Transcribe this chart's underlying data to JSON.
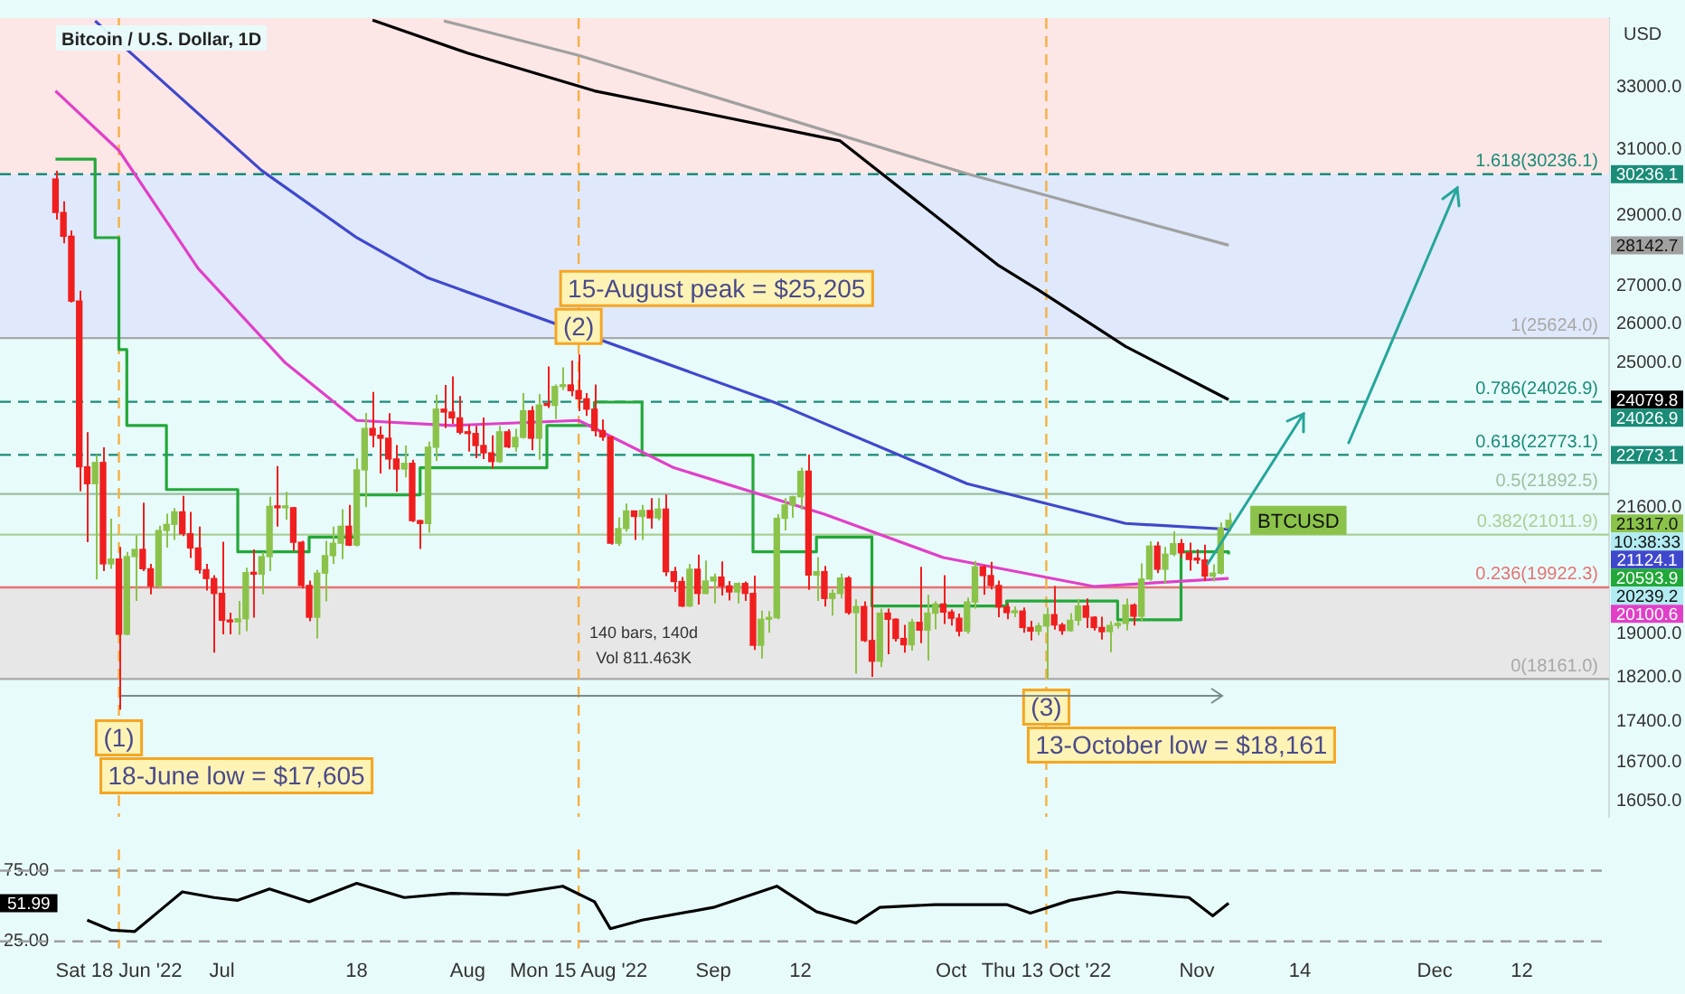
{
  "chart_data": [
    {
      "type": "candlestick",
      "title": "Bitcoin / U.S. Dollar, 1D",
      "ylabel": "USD",
      "log": "y",
      "tick_labels": "y",
      "xlim": [
        "2022-06-03",
        "2022-12-23"
      ],
      "ylim": [
        15800,
        35400
      ],
      "yticks": [
        {
          "value": 33000,
          "label": "33000.0"
        },
        {
          "value": 31000,
          "label": "31000.0"
        },
        {
          "value": 29000,
          "label": "29000.0"
        },
        {
          "value": 27000,
          "label": "27000.0"
        },
        {
          "value": 26000,
          "label": "26000.0"
        },
        {
          "value": 25000,
          "label": "25000.0"
        },
        {
          "value": 21600,
          "label": "21600.0"
        },
        {
          "value": 19000,
          "label": "19000.0"
        },
        {
          "value": 18200,
          "label": "18200.0"
        },
        {
          "value": 17400,
          "label": "17400.0"
        },
        {
          "value": 16700,
          "label": "16700.0"
        },
        {
          "value": 16050,
          "label": "16050.0"
        }
      ],
      "x": [
        "2022-06-10",
        "2022-06-11",
        "2022-06-12",
        "2022-06-13",
        "2022-06-14",
        "2022-06-15",
        "2022-06-16",
        "2022-06-17",
        "2022-06-18",
        "2022-06-19",
        "2022-06-20",
        "2022-06-21",
        "2022-06-22",
        "2022-06-23",
        "2022-06-24",
        "2022-06-25",
        "2022-06-26",
        "2022-06-27",
        "2022-06-28",
        "2022-06-29",
        "2022-06-30",
        "2022-07-01",
        "2022-07-02",
        "2022-07-03",
        "2022-07-04",
        "2022-07-05",
        "2022-07-06",
        "2022-07-07",
        "2022-07-08",
        "2022-07-09",
        "2022-07-10",
        "2022-07-11",
        "2022-07-12",
        "2022-07-13",
        "2022-07-14",
        "2022-07-15",
        "2022-07-16",
        "2022-07-17",
        "2022-07-18",
        "2022-07-19",
        "2022-07-20",
        "2022-07-21",
        "2022-07-22",
        "2022-07-23",
        "2022-07-24",
        "2022-07-25",
        "2022-07-26",
        "2022-07-27",
        "2022-07-28",
        "2022-07-29",
        "2022-07-30",
        "2022-07-31",
        "2022-08-01",
        "2022-08-02",
        "2022-08-03",
        "2022-08-04",
        "2022-08-05",
        "2022-08-06",
        "2022-08-07",
        "2022-08-08",
        "2022-08-09",
        "2022-08-10",
        "2022-08-11",
        "2022-08-12",
        "2022-08-13",
        "2022-08-14",
        "2022-08-15",
        "2022-08-16",
        "2022-08-17",
        "2022-08-18",
        "2022-08-19",
        "2022-08-20",
        "2022-08-21",
        "2022-08-22",
        "2022-08-23",
        "2022-08-24",
        "2022-08-25",
        "2022-08-26",
        "2022-08-27",
        "2022-08-28",
        "2022-08-29",
        "2022-08-30",
        "2022-08-31",
        "2022-09-01",
        "2022-09-02",
        "2022-09-03",
        "2022-09-04",
        "2022-09-05",
        "2022-09-06",
        "2022-09-07",
        "2022-09-08",
        "2022-09-09",
        "2022-09-10",
        "2022-09-11",
        "2022-09-12",
        "2022-09-13",
        "2022-09-14",
        "2022-09-15",
        "2022-09-16",
        "2022-09-17",
        "2022-09-18",
        "2022-09-19",
        "2022-09-20",
        "2022-09-21",
        "2022-09-22",
        "2022-09-23",
        "2022-09-24",
        "2022-09-25",
        "2022-09-26",
        "2022-09-27",
        "2022-09-28",
        "2022-09-29",
        "2022-09-30",
        "2022-10-01",
        "2022-10-02",
        "2022-10-03",
        "2022-10-04",
        "2022-10-05",
        "2022-10-06",
        "2022-10-07",
        "2022-10-08",
        "2022-10-09",
        "2022-10-10",
        "2022-10-11",
        "2022-10-12",
        "2022-10-13",
        "2022-10-14",
        "2022-10-15",
        "2022-10-16",
        "2022-10-17",
        "2022-10-18",
        "2022-10-19",
        "2022-10-20",
        "2022-10-21",
        "2022-10-22",
        "2022-10-23",
        "2022-10-24",
        "2022-10-25",
        "2022-10-26",
        "2022-10-27",
        "2022-10-28",
        "2022-10-29",
        "2022-10-30",
        "2022-10-31",
        "2022-11-01",
        "2022-11-02",
        "2022-11-03",
        "2022-11-04",
        "2022-11-05"
      ],
      "ohlc": [
        [
          30090,
          30340,
          28880,
          29090
        ],
        [
          29090,
          29420,
          28200,
          28400
        ],
        [
          28400,
          28570,
          26560,
          26600
        ],
        [
          26600,
          26880,
          21950,
          22500
        ],
        [
          22500,
          23300,
          20850,
          22120
        ],
        [
          22120,
          22770,
          20080,
          22600
        ],
        [
          22600,
          22950,
          20250,
          20400
        ],
        [
          20400,
          21350,
          20300,
          20500
        ],
        [
          20500,
          20750,
          17605,
          19000
        ],
        [
          19000,
          20650,
          18980,
          20550
        ],
        [
          20550,
          21000,
          19650,
          20700
        ],
        [
          20700,
          21700,
          20250,
          20300
        ],
        [
          20300,
          20400,
          19780,
          19950
        ],
        [
          19950,
          21200,
          19900,
          21100
        ],
        [
          21100,
          21460,
          20740,
          21230
        ],
        [
          21230,
          21580,
          20900,
          21500
        ],
        [
          21500,
          21850,
          20980,
          21030
        ],
        [
          21030,
          21500,
          20520,
          20730
        ],
        [
          20730,
          21180,
          20200,
          20280
        ],
        [
          20280,
          20400,
          19860,
          20100
        ],
        [
          20100,
          20170,
          18650,
          19800
        ],
        [
          19800,
          20860,
          19000,
          19270
        ],
        [
          19270,
          19420,
          19000,
          19240
        ],
        [
          19240,
          19650,
          18990,
          19300
        ],
        [
          19300,
          20320,
          19060,
          20220
        ],
        [
          20220,
          20700,
          19320,
          20190
        ],
        [
          20190,
          20640,
          19780,
          20550
        ],
        [
          20550,
          21830,
          20250,
          21620
        ],
        [
          21620,
          22520,
          21180,
          21590
        ],
        [
          21590,
          21940,
          21330,
          21590
        ],
        [
          21590,
          21600,
          20670,
          20850
        ],
        [
          20850,
          20880,
          19900,
          19960
        ],
        [
          19960,
          20060,
          19250,
          19330
        ],
        [
          19330,
          20280,
          18920,
          20210
        ],
        [
          20210,
          20880,
          19640,
          20570
        ],
        [
          20570,
          21180,
          20400,
          20830
        ],
        [
          20830,
          21560,
          20500,
          21190
        ],
        [
          21190,
          21650,
          20770,
          20790
        ],
        [
          20790,
          22700,
          20760,
          22430
        ],
        [
          22430,
          23760,
          21600,
          23390
        ],
        [
          23390,
          24270,
          22950,
          23230
        ],
        [
          23230,
          23440,
          22350,
          23160
        ],
        [
          23160,
          23750,
          22440,
          22680
        ],
        [
          22680,
          23000,
          21940,
          22450
        ],
        [
          22450,
          22990,
          22260,
          22580
        ],
        [
          22580,
          22660,
          21280,
          21310
        ],
        [
          21310,
          21330,
          20710,
          21250
        ],
        [
          21250,
          23080,
          21050,
          22950
        ],
        [
          22950,
          24200,
          22630,
          23850
        ],
        [
          23850,
          24440,
          23400,
          23780
        ],
        [
          23780,
          24650,
          23500,
          23640
        ],
        [
          23640,
          24170,
          23250,
          23300
        ],
        [
          23300,
          23480,
          22850,
          23270
        ],
        [
          23270,
          23450,
          22700,
          22990
        ],
        [
          22990,
          23650,
          22680,
          22820
        ],
        [
          22820,
          23230,
          22460,
          22620
        ],
        [
          22620,
          23450,
          22590,
          23310
        ],
        [
          23310,
          23370,
          22930,
          22960
        ],
        [
          22960,
          23380,
          22850,
          23180
        ],
        [
          23180,
          24240,
          23150,
          23810
        ],
        [
          23810,
          23920,
          22880,
          23160
        ],
        [
          23160,
          24220,
          22660,
          23950
        ],
        [
          23950,
          24900,
          23880,
          23940
        ],
        [
          23940,
          24450,
          23610,
          24400
        ],
        [
          24400,
          24880,
          24310,
          24440
        ],
        [
          24440,
          25050,
          24160,
          24300
        ],
        [
          24300,
          25205,
          23800,
          24100
        ],
        [
          24100,
          24240,
          23690,
          23850
        ],
        [
          23850,
          24450,
          23200,
          23340
        ],
        [
          23340,
          23600,
          23100,
          23190
        ],
        [
          23190,
          23210,
          20800,
          20830
        ],
        [
          20830,
          21380,
          20770,
          21140
        ],
        [
          21140,
          21680,
          21070,
          21520
        ],
        [
          21520,
          21530,
          20900,
          21400
        ],
        [
          21400,
          21650,
          20900,
          21530
        ],
        [
          21530,
          21800,
          21140,
          21370
        ],
        [
          21370,
          21800,
          21320,
          21560
        ],
        [
          21560,
          21880,
          20150,
          20240
        ],
        [
          20240,
          20340,
          19830,
          20040
        ],
        [
          20040,
          20130,
          19530,
          19550
        ],
        [
          19550,
          20400,
          19530,
          20290
        ],
        [
          20290,
          20590,
          19580,
          19800
        ],
        [
          19800,
          20470,
          19780,
          20050
        ],
        [
          20050,
          20200,
          19600,
          20130
        ],
        [
          20130,
          20450,
          19760,
          19950
        ],
        [
          19950,
          20050,
          19660,
          19830
        ],
        [
          19830,
          20020,
          19600,
          20000
        ],
        [
          20000,
          20040,
          19650,
          19800
        ],
        [
          19800,
          20160,
          18700,
          18790
        ],
        [
          18790,
          19460,
          18540,
          19290
        ],
        [
          19290,
          19450,
          19030,
          19320
        ],
        [
          19320,
          21450,
          19290,
          21360
        ],
        [
          21360,
          21800,
          21100,
          21650
        ],
        [
          21650,
          21850,
          21370,
          21830
        ],
        [
          21830,
          22480,
          21550,
          22400
        ],
        [
          22400,
          22780,
          19870,
          20170
        ],
        [
          20170,
          20540,
          19650,
          20240
        ],
        [
          20240,
          20360,
          19540,
          19700
        ],
        [
          19700,
          19880,
          19360,
          19800
        ],
        [
          19800,
          20200,
          19700,
          20110
        ],
        [
          20110,
          20150,
          19380,
          19420
        ],
        [
          19420,
          19680,
          18260,
          19540
        ],
        [
          19540,
          19640,
          18850,
          18880
        ],
        [
          18880,
          19950,
          18200,
          18490
        ],
        [
          18490,
          19500,
          18380,
          19410
        ],
        [
          19410,
          19500,
          18620,
          19290
        ],
        [
          19290,
          19310,
          18860,
          18920
        ],
        [
          18920,
          19180,
          18650,
          18800
        ],
        [
          18800,
          19300,
          18690,
          19230
        ],
        [
          19230,
          20340,
          18830,
          19080
        ],
        [
          19080,
          19770,
          18500,
          19410
        ],
        [
          19410,
          19640,
          19100,
          19590
        ],
        [
          19590,
          20170,
          19200,
          19430
        ],
        [
          19430,
          19480,
          19170,
          19310
        ],
        [
          19310,
          19400,
          18960,
          19060
        ],
        [
          19060,
          19720,
          19010,
          19630
        ],
        [
          19630,
          20460,
          19500,
          20340
        ],
        [
          20340,
          20370,
          19770,
          20160
        ],
        [
          20160,
          20440,
          19880,
          19960
        ],
        [
          19960,
          20060,
          19330,
          19530
        ],
        [
          19530,
          19610,
          19290,
          19420
        ],
        [
          19420,
          19540,
          19330,
          19450
        ],
        [
          19450,
          19520,
          19030,
          19130
        ],
        [
          19130,
          19260,
          18880,
          19060
        ],
        [
          19060,
          19220,
          18980,
          19160
        ],
        [
          19160,
          19520,
          18161,
          19380
        ],
        [
          19380,
          19950,
          19090,
          19180
        ],
        [
          19180,
          19220,
          18990,
          19070
        ],
        [
          19070,
          19410,
          19050,
          19270
        ],
        [
          19270,
          19690,
          19170,
          19550
        ],
        [
          19550,
          19700,
          19120,
          19330
        ],
        [
          19330,
          19350,
          19070,
          19130
        ],
        [
          19130,
          19340,
          18900,
          19050
        ],
        [
          19050,
          19250,
          18660,
          19170
        ],
        [
          19170,
          19260,
          19110,
          19210
        ],
        [
          19210,
          19700,
          19070,
          19570
        ],
        [
          19570,
          19600,
          19170,
          19350
        ],
        [
          19350,
          20410,
          19250,
          20090
        ],
        [
          20090,
          20870,
          20060,
          20770
        ],
        [
          20770,
          20860,
          20210,
          20290
        ],
        [
          20290,
          20750,
          20000,
          20600
        ],
        [
          20600,
          21080,
          20560,
          20820
        ],
        [
          20820,
          20920,
          20520,
          20630
        ],
        [
          20630,
          20840,
          20260,
          20490
        ],
        [
          20490,
          20700,
          20400,
          20480
        ],
        [
          20480,
          20800,
          20050,
          20150
        ],
        [
          20150,
          20390,
          20040,
          20210
        ],
        [
          20210,
          21270,
          20180,
          21150
        ],
        [
          21150,
          21480,
          21080,
          21317
        ]
      ],
      "series": [
        {
          "type": "line",
          "color": "#a0a0a0",
          "x": [
            "2022-07-29",
            "2022-08-15",
            "2022-10-03",
            "2022-11-05"
          ],
          "values": [
            35300,
            34090,
            30250,
            28142.7
          ]
        },
        {
          "type": "line",
          "color": "#000000",
          "x": [
            "2022-07-20",
            "2022-08-01",
            "2022-08-17",
            "2022-08-29",
            "2022-09-17",
            "2022-10-07",
            "2022-10-12",
            "2022-10-23",
            "2022-11-05"
          ],
          "values": [
            35330,
            34170,
            32890,
            32260,
            31270,
            27570,
            26900,
            25410,
            24079.8
          ]
        },
        {
          "type": "line",
          "color": "#3f48cc",
          "x": [
            "2022-06-15",
            "2022-07-06",
            "2022-07-18",
            "2022-07-27",
            "2022-09-09",
            "2022-10-03",
            "2022-10-23",
            "2022-11-05"
          ],
          "values": [
            35300,
            30350,
            28360,
            27230,
            23990,
            22120,
            21250,
            21124.1
          ]
        },
        {
          "type": "line",
          "color": "#e040c8",
          "x": [
            "2022-06-10",
            "2022-06-18",
            "2022-06-28",
            "2022-07-09",
            "2022-07-18",
            "2022-07-30",
            "2022-08-15",
            "2022-08-27",
            "2022-09-15",
            "2022-09-30",
            "2022-10-19",
            "2022-11-05"
          ],
          "values": [
            32890,
            30970,
            27490,
            24990,
            23580,
            23460,
            23580,
            22480,
            21450,
            20530,
            19940,
            20100.6
          ]
        },
        {
          "type": "step",
          "color": "#22a838",
          "x": [
            "2022-06-10",
            "2022-06-15",
            "2022-06-18",
            "2022-06-19",
            "2022-06-24",
            "2022-07-03",
            "2022-07-12",
            "2022-07-18",
            "2022-07-26",
            "2022-08-11",
            "2022-08-17",
            "2022-08-23",
            "2022-09-06",
            "2022-09-14",
            "2022-09-21",
            "2022-10-08",
            "2022-10-22",
            "2022-10-30",
            "2022-11-05"
          ],
          "values": [
            30700,
            28360,
            25330,
            23460,
            21990,
            20650,
            20960,
            21870,
            22480,
            23460,
            24020,
            22770,
            20650,
            20960,
            19550,
            19650,
            19280,
            20650,
            20593.9
          ]
        }
      ],
      "bands": [
        {
          "axis": "y",
          "from": 30236.1,
          "to": 35400,
          "color": "#fde6e6"
        },
        {
          "axis": "y",
          "from": 25624,
          "to": 30236.1,
          "color": "#dfe9fb"
        },
        {
          "axis": "y",
          "from": 18161,
          "to": 19922.3,
          "color": "#e7e7e7"
        }
      ],
      "ref_lines": [
        {
          "axis": "y",
          "value": 30236.1,
          "label": "1.618(30236.1)",
          "color": "#1a8c78",
          "line_style": "dashed"
        },
        {
          "axis": "y",
          "value": 25624,
          "label": "1(25624.0)",
          "color": "#a8a8a8"
        },
        {
          "axis": "y",
          "value": 24026.9,
          "label": "0.786(24026.9)",
          "color": "#1a8c78",
          "line_style": "dashed"
        },
        {
          "axis": "y",
          "value": 22773.1,
          "label": "0.618(22773.1)",
          "color": "#1a8c78",
          "line_style": "dashed"
        },
        {
          "axis": "y",
          "value": 21892.5,
          "label": "0.5(21892.5)",
          "color": "#9cbf9f"
        },
        {
          "axis": "y",
          "value": 21011.9,
          "label": "0.382(21011.9)",
          "color": "#a9cf94"
        },
        {
          "axis": "y",
          "value": 19922.3,
          "label": "0.236(19922.3)",
          "color": "#e57373"
        },
        {
          "axis": "y",
          "value": 18161,
          "label": "0(18161.0)",
          "color": "#a8a8a8"
        },
        {
          "axis": "x",
          "value": "2022-06-18",
          "label": null,
          "color": "#f5b041",
          "line_style": "dashed"
        },
        {
          "axis": "x",
          "value": "2022-08-15",
          "label": null,
          "color": "#f5b041",
          "line_style": "dashed"
        },
        {
          "axis": "x",
          "value": "2022-10-13",
          "label": null,
          "color": "#f5b041",
          "line_style": "dashed"
        }
      ],
      "annotations": [
        "140 bars, 140d",
        "Vol 811.463K",
        {
          "text": "(1)",
          "x": "2022-06-18",
          "y": 17605
        },
        {
          "text": "18-June low = $17,605",
          "x": "2022-06-18",
          "y": 17605
        },
        {
          "text": "(2)",
          "x": "2022-08-15",
          "y": 25205
        },
        {
          "text": "15-August peak = $25,205",
          "x": "2022-08-15",
          "y": 25205
        },
        {
          "text": "(3)",
          "x": "2022-10-13",
          "y": 18161
        },
        {
          "text": "13-October low = $18,161",
          "x": "2022-10-13",
          "y": 18161
        },
        {
          "text": "BTCUSD",
          "x": "2022-11-05",
          "y": 21317
        },
        "30236.1",
        "28142.7",
        "24079.8",
        "24026.9",
        "22773.1",
        "21317.0",
        "10:38:33",
        "21124.1",
        "20593.9",
        "20239.2",
        "20100.6"
      ]
    },
    {
      "type": "line",
      "color": "#000000",
      "xlim": [
        "2022-06-03",
        "2022-12-23"
      ],
      "ylim": [
        20,
        90
      ],
      "xticks": [
        {
          "value": "2022-06-18",
          "label": "Sat 18 Jun '22"
        },
        {
          "value": "2022-07-01",
          "label": "Jul"
        },
        {
          "value": "2022-07-18",
          "label": "18"
        },
        {
          "value": "2022-08-01",
          "label": "Aug"
        },
        {
          "value": "2022-08-15",
          "label": "Mon 15 Aug '22"
        },
        {
          "value": "2022-09-01",
          "label": "Sep"
        },
        {
          "value": "2022-09-12",
          "label": "12"
        },
        {
          "value": "2022-10-01",
          "label": "Oct"
        },
        {
          "value": "2022-10-13",
          "label": "Thu 13 Oct '22"
        },
        {
          "value": "2022-11-01",
          "label": "Nov"
        },
        {
          "value": "2022-11-14",
          "label": "14"
        },
        {
          "value": "2022-12-01",
          "label": "Dec"
        },
        {
          "value": "2022-12-12",
          "label": "12"
        }
      ],
      "yticks": [
        {
          "value": 75,
          "label": "75.00"
        },
        {
          "value": 25,
          "label": "25.00"
        }
      ],
      "x": [
        "2022-06-14",
        "2022-06-17",
        "2022-06-20",
        "2022-06-23",
        "2022-06-26",
        "2022-06-30",
        "2022-07-03",
        "2022-07-07",
        "2022-07-12",
        "2022-07-18",
        "2022-07-24",
        "2022-07-30",
        "2022-08-06",
        "2022-08-13",
        "2022-08-17",
        "2022-08-19",
        "2022-08-23",
        "2022-09-01",
        "2022-09-09",
        "2022-09-14",
        "2022-09-19",
        "2022-09-22",
        "2022-09-29",
        "2022-10-08",
        "2022-10-11",
        "2022-10-16",
        "2022-10-22",
        "2022-10-31",
        "2022-11-03",
        "2022-11-05"
      ],
      "values": [
        40,
        33,
        32,
        46,
        60,
        56,
        54,
        62,
        53,
        66,
        56,
        59,
        58,
        64,
        53,
        34,
        40,
        49,
        64,
        46,
        38,
        49,
        51,
        51,
        45,
        54,
        60,
        56,
        43,
        51.99
      ],
      "ref_lines": [
        {
          "axis": "y",
          "value": 75,
          "label": null,
          "color": "#9e9e9e",
          "line_style": "dashed"
        },
        {
          "axis": "y",
          "value": 25,
          "label": null,
          "color": "#9e9e9e",
          "line_style": "dashed"
        },
        {
          "axis": "x",
          "value": "2022-06-18",
          "label": null,
          "color": "#f5b041",
          "line_style": "dashed"
        },
        {
          "axis": "x",
          "value": "2022-08-15",
          "label": null,
          "color": "#f5b041",
          "line_style": "dashed"
        },
        {
          "axis": "x",
          "value": "2022-10-13",
          "label": null,
          "color": "#f5b041",
          "line_style": "dashed"
        }
      ],
      "annotations": [
        {
          "text": "51.99",
          "y": 51.99
        }
      ]
    }
  ]
}
